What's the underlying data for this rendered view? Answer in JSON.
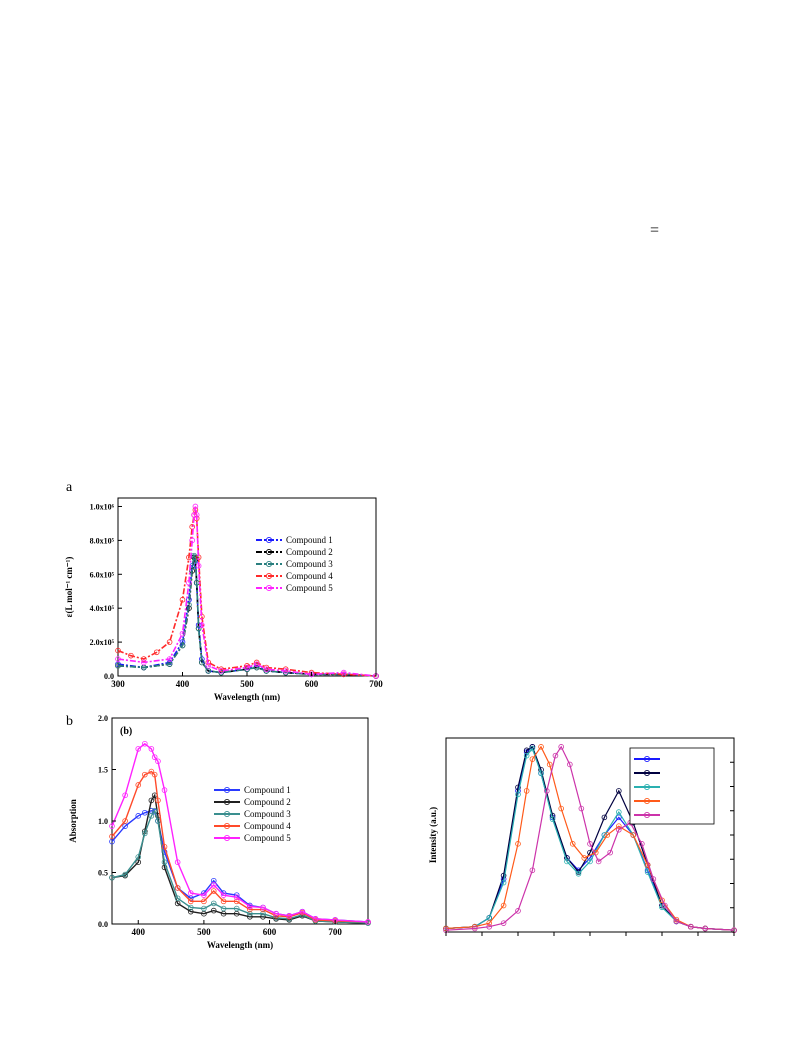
{
  "page": {
    "equals_sign": "="
  },
  "panel_letters": {
    "a": "a",
    "b": "b"
  },
  "chart_data": [
    {
      "id": "a",
      "type": "line",
      "title": "",
      "xlabel": "Wavelength (nm)",
      "ylabel": "ε(L mol⁻¹ cm⁻¹)",
      "xlim": [
        300,
        700
      ],
      "ylim": [
        0,
        1.05
      ],
      "x_ticks": [
        "300",
        "400",
        "500",
        "600",
        "700"
      ],
      "y_ticks": [
        "0.0",
        "2.0x10⁵",
        "4.0x10⁵",
        "6.0x10⁵",
        "8.0x10⁵",
        "1.0x10⁶"
      ],
      "grid": false,
      "legend_position": "center-right",
      "series": [
        {
          "name": "Compound 1",
          "color": "#1a1aff",
          "x": [
            300,
            340,
            380,
            400,
            410,
            415,
            418,
            420,
            422,
            425,
            430,
            440,
            460,
            500,
            515,
            530,
            560,
            600,
            650,
            700
          ],
          "y": [
            0.07,
            0.05,
            0.08,
            0.2,
            0.45,
            0.65,
            0.7,
            0.68,
            0.55,
            0.3,
            0.1,
            0.03,
            0.02,
            0.04,
            0.06,
            0.03,
            0.02,
            0.01,
            0.01,
            0.0
          ]
        },
        {
          "name": "Compound 2",
          "color": "#000000",
          "x": [
            300,
            340,
            380,
            400,
            410,
            415,
            418,
            420,
            422,
            425,
            430,
            440,
            460,
            500,
            515,
            530,
            560,
            600,
            650,
            700
          ],
          "y": [
            0.06,
            0.05,
            0.07,
            0.18,
            0.4,
            0.62,
            0.7,
            0.69,
            0.55,
            0.28,
            0.08,
            0.03,
            0.02,
            0.04,
            0.05,
            0.03,
            0.02,
            0.01,
            0.01,
            0.0
          ]
        },
        {
          "name": "Compound 3",
          "color": "#2a7f7f",
          "x": [
            300,
            340,
            380,
            400,
            410,
            415,
            418,
            420,
            422,
            425,
            430,
            440,
            460,
            500,
            515,
            530,
            560,
            600,
            650,
            700
          ],
          "y": [
            0.06,
            0.05,
            0.07,
            0.18,
            0.42,
            0.64,
            0.71,
            0.7,
            0.55,
            0.28,
            0.08,
            0.03,
            0.02,
            0.04,
            0.05,
            0.03,
            0.02,
            0.01,
            0.01,
            0.0
          ]
        },
        {
          "name": "Compound 4",
          "color": "#ff2a2a",
          "x": [
            300,
            320,
            340,
            360,
            380,
            400,
            410,
            415,
            418,
            420,
            422,
            425,
            430,
            440,
            460,
            500,
            515,
            530,
            560,
            600,
            650,
            700
          ],
          "y": [
            0.15,
            0.12,
            0.1,
            0.14,
            0.2,
            0.45,
            0.7,
            0.88,
            0.95,
            0.98,
            0.93,
            0.7,
            0.35,
            0.08,
            0.04,
            0.06,
            0.08,
            0.05,
            0.04,
            0.02,
            0.01,
            0.0
          ]
        },
        {
          "name": "Compound 5",
          "color": "#ff22ff",
          "x": [
            300,
            340,
            380,
            400,
            410,
            415,
            418,
            420,
            422,
            425,
            430,
            440,
            460,
            500,
            515,
            530,
            560,
            600,
            650,
            700
          ],
          "y": [
            0.1,
            0.08,
            0.1,
            0.25,
            0.55,
            0.8,
            0.95,
            1.0,
            0.95,
            0.65,
            0.3,
            0.06,
            0.03,
            0.05,
            0.07,
            0.04,
            0.03,
            0.01,
            0.02,
            0.0
          ]
        }
      ]
    },
    {
      "id": "b",
      "type": "line",
      "title": "(b)",
      "xlabel": "Wavelength (nm)",
      "ylabel": "Absorption",
      "xlim": [
        360,
        750
      ],
      "ylim": [
        0,
        2.0
      ],
      "x_ticks": [
        "400",
        "500",
        "600",
        "700"
      ],
      "y_ticks": [
        "0.0",
        "0.5",
        "1.0",
        "1.5",
        "2.0"
      ],
      "grid": false,
      "legend_position": "center-right",
      "series": [
        {
          "name": "Compound 1",
          "color": "#2a3aff",
          "x": [
            360,
            380,
            400,
            410,
            420,
            425,
            430,
            440,
            460,
            480,
            500,
            515,
            530,
            550,
            570,
            590,
            610,
            630,
            650,
            670,
            700,
            750
          ],
          "y": [
            0.8,
            0.95,
            1.05,
            1.08,
            1.1,
            1.09,
            1.0,
            0.7,
            0.35,
            0.25,
            0.3,
            0.42,
            0.3,
            0.28,
            0.18,
            0.16,
            0.1,
            0.08,
            0.12,
            0.05,
            0.04,
            0.02
          ]
        },
        {
          "name": "Compound 2",
          "color": "#202020",
          "x": [
            360,
            380,
            400,
            410,
            420,
            425,
            430,
            440,
            460,
            480,
            500,
            515,
            530,
            550,
            570,
            590,
            610,
            630,
            650,
            670,
            700,
            750
          ],
          "y": [
            0.45,
            0.47,
            0.6,
            0.9,
            1.2,
            1.25,
            1.05,
            0.55,
            0.2,
            0.12,
            0.1,
            0.13,
            0.1,
            0.1,
            0.07,
            0.07,
            0.05,
            0.04,
            0.08,
            0.03,
            0.02,
            0.01
          ]
        },
        {
          "name": "Compound 3",
          "color": "#3a8f8f",
          "x": [
            360,
            380,
            400,
            410,
            420,
            425,
            430,
            440,
            460,
            480,
            500,
            515,
            530,
            550,
            570,
            590,
            610,
            630,
            650,
            670,
            700,
            750
          ],
          "y": [
            0.45,
            0.48,
            0.65,
            0.88,
            1.05,
            1.1,
            1.0,
            0.6,
            0.25,
            0.16,
            0.15,
            0.2,
            0.15,
            0.15,
            0.1,
            0.1,
            0.06,
            0.05,
            0.09,
            0.03,
            0.02,
            0.01
          ]
        },
        {
          "name": "Compound 4",
          "color": "#ff4a2a",
          "x": [
            360,
            380,
            400,
            410,
            420,
            425,
            430,
            440,
            460,
            480,
            500,
            515,
            530,
            550,
            570,
            590,
            610,
            630,
            650,
            670,
            700,
            750
          ],
          "y": [
            0.85,
            1.0,
            1.35,
            1.45,
            1.48,
            1.45,
            1.2,
            0.75,
            0.35,
            0.22,
            0.22,
            0.32,
            0.22,
            0.22,
            0.14,
            0.14,
            0.08,
            0.07,
            0.11,
            0.04,
            0.03,
            0.02
          ]
        },
        {
          "name": "Compound 5",
          "color": "#ff22ff",
          "x": [
            360,
            380,
            400,
            410,
            420,
            425,
            430,
            440,
            460,
            480,
            500,
            515,
            530,
            550,
            570,
            590,
            610,
            630,
            650,
            670,
            700,
            750
          ],
          "y": [
            0.95,
            1.25,
            1.7,
            1.75,
            1.7,
            1.62,
            1.58,
            1.3,
            0.6,
            0.3,
            0.28,
            0.38,
            0.28,
            0.26,
            0.17,
            0.16,
            0.1,
            0.08,
            0.12,
            0.05,
            0.04,
            0.02
          ]
        }
      ]
    },
    {
      "id": "c",
      "type": "line",
      "title": "",
      "xlabel": "",
      "ylabel": "Intensity (a.u.)",
      "xlim": [
        0,
        10
      ],
      "ylim": [
        0,
        1.1
      ],
      "x_ticks": [],
      "y_ticks": [],
      "grid": false,
      "legend_position": "top-right",
      "series": [
        {
          "color": "#1a1aff",
          "x": [
            0,
            1,
            1.5,
            2,
            2.5,
            2.8,
            3.0,
            3.3,
            3.7,
            4.2,
            4.6,
            5.0,
            5.5,
            6.0,
            6.5,
            7.0,
            7.5,
            8.0,
            8.5,
            9.0,
            10
          ],
          "y": [
            0.02,
            0.03,
            0.08,
            0.3,
            0.8,
            1.02,
            1.05,
            0.9,
            0.65,
            0.42,
            0.35,
            0.42,
            0.55,
            0.65,
            0.55,
            0.35,
            0.15,
            0.06,
            0.03,
            0.02,
            0.01
          ]
        },
        {
          "color": "#000040",
          "x": [
            0,
            1,
            1.5,
            2,
            2.5,
            2.8,
            3.0,
            3.3,
            3.7,
            4.2,
            4.6,
            5.0,
            5.5,
            6.0,
            6.5,
            7.0,
            7.5,
            8.0,
            8.5,
            9.0,
            10
          ],
          "y": [
            0.02,
            0.03,
            0.08,
            0.32,
            0.82,
            1.03,
            1.05,
            0.92,
            0.66,
            0.42,
            0.34,
            0.45,
            0.65,
            0.8,
            0.62,
            0.38,
            0.15,
            0.06,
            0.03,
            0.02,
            0.01
          ]
        },
        {
          "color": "#2ab0b0",
          "x": [
            0,
            1,
            1.5,
            2,
            2.5,
            2.8,
            3.0,
            3.3,
            3.7,
            4.2,
            4.6,
            5.0,
            5.5,
            6.0,
            6.5,
            7.0,
            7.5,
            8.0,
            8.5,
            9.0,
            10
          ],
          "y": [
            0.02,
            0.03,
            0.08,
            0.28,
            0.78,
            1.0,
            1.04,
            0.9,
            0.64,
            0.4,
            0.33,
            0.4,
            0.55,
            0.68,
            0.55,
            0.34,
            0.14,
            0.06,
            0.03,
            0.02,
            0.01
          ]
        },
        {
          "color": "#ff5a1a",
          "x": [
            0,
            1,
            1.5,
            2,
            2.5,
            2.8,
            3.0,
            3.3,
            3.6,
            4.0,
            4.4,
            4.8,
            5.2,
            5.6,
            6.0,
            6.5,
            7.0,
            7.5,
            8.0,
            8.5,
            9.0,
            10
          ],
          "y": [
            0.02,
            0.03,
            0.05,
            0.15,
            0.5,
            0.8,
            0.98,
            1.05,
            0.95,
            0.7,
            0.5,
            0.42,
            0.45,
            0.55,
            0.6,
            0.55,
            0.38,
            0.18,
            0.07,
            0.03,
            0.02,
            0.01
          ]
        },
        {
          "color": "#cc33aa",
          "x": [
            0,
            1,
            1.5,
            2,
            2.5,
            3.0,
            3.5,
            3.8,
            4.0,
            4.3,
            4.7,
            5.0,
            5.3,
            5.7,
            6.0,
            6.4,
            6.8,
            7.2,
            7.6,
            8.0,
            8.5,
            9.0,
            10
          ],
          "y": [
            0.01,
            0.02,
            0.03,
            0.05,
            0.12,
            0.35,
            0.8,
            1.0,
            1.05,
            0.95,
            0.7,
            0.5,
            0.4,
            0.45,
            0.58,
            0.62,
            0.5,
            0.3,
            0.15,
            0.06,
            0.03,
            0.02,
            0.01
          ]
        }
      ]
    }
  ]
}
